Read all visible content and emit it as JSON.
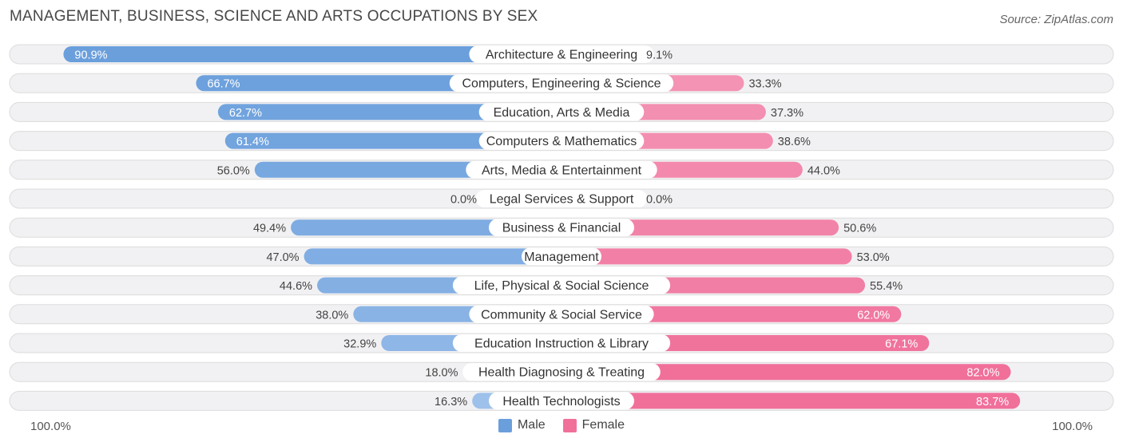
{
  "title": "MANAGEMENT, BUSINESS, SCIENCE AND ARTS OCCUPATIONS BY SEX",
  "source": "Source: ZipAtlas.com",
  "axis": {
    "left_label": "100.0%",
    "right_label": "100.0%"
  },
  "legend": {
    "male_label": "Male",
    "female_label": "Female",
    "male_color": "#6a9fdc",
    "female_color": "#f0709a"
  },
  "chart_data": {
    "type": "bar",
    "orientation": "horizontal-diverging",
    "categories": [
      "Architecture & Engineering",
      "Computers, Engineering & Science",
      "Education, Arts & Media",
      "Computers & Mathematics",
      "Arts, Media & Entertainment",
      "Legal Services & Support",
      "Business & Financial",
      "Management",
      "Life, Physical & Social Science",
      "Community & Social Service",
      "Education Instruction & Library",
      "Health Diagnosing & Treating",
      "Health Technologists"
    ],
    "series": [
      {
        "name": "Male",
        "values": [
          90.9,
          66.7,
          62.7,
          61.4,
          56.0,
          0.0,
          49.4,
          47.0,
          44.6,
          38.0,
          32.9,
          18.0,
          16.3
        ],
        "labels": [
          "90.9%",
          "66.7%",
          "62.7%",
          "61.4%",
          "56.0%",
          "0.0%",
          "49.4%",
          "47.0%",
          "44.6%",
          "38.0%",
          "32.9%",
          "18.0%",
          "16.3%"
        ]
      },
      {
        "name": "Female",
        "values": [
          9.1,
          33.3,
          37.3,
          38.6,
          44.0,
          0.0,
          50.6,
          53.0,
          55.4,
          62.0,
          67.1,
          82.0,
          83.7
        ],
        "labels": [
          "9.1%",
          "33.3%",
          "37.3%",
          "38.6%",
          "44.0%",
          "0.0%",
          "50.6%",
          "53.0%",
          "55.4%",
          "62.0%",
          "67.1%",
          "82.0%",
          "83.7%"
        ]
      }
    ],
    "xlim": [
      -100,
      100
    ],
    "legend_position": "bottom-center"
  }
}
